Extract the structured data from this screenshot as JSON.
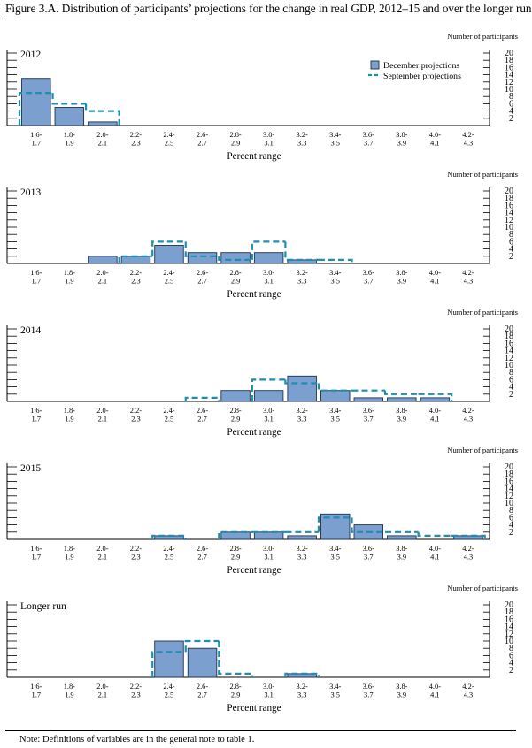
{
  "title": "Figure 3.A. Distribution of participants’ projections for the change in real GDP, 2012–15 and over the longer run",
  "note": "Note:  Definitions of variables are in the general note to table 1.",
  "colors": {
    "bar_fill": "#7b9fcf",
    "bar_stroke": "#1f2f4a",
    "september_line": "#1a8fb0",
    "axis": "#000000"
  },
  "legend": {
    "december": "December projections",
    "september": "September projections"
  },
  "chart_data": [
    {
      "type": "bar",
      "label": "2012",
      "ylabel": "Number of participants",
      "xlabel": "Percent range",
      "ylim": [
        0,
        20
      ],
      "yticks": [
        "2",
        "4",
        "6",
        "8",
        "10",
        "12",
        "14",
        "16",
        "18",
        "20"
      ],
      "categories": [
        "1.6-\n1.7",
        "1.8-\n1.9",
        "2.0-\n2.1",
        "2.2-\n2.3",
        "2.4-\n2.5",
        "2.6-\n2.7",
        "2.8-\n2.9",
        "3.0-\n3.1",
        "3.2-\n3.3",
        "3.4-\n3.5",
        "3.6-\n3.7",
        "3.8-\n3.9",
        "4.0-\n4.1",
        "4.2-\n4.3"
      ],
      "legend_shown": true,
      "series": [
        {
          "name": "December projections",
          "values": [
            13,
            5,
            1,
            0,
            0,
            0,
            0,
            0,
            0,
            0,
            0,
            0,
            0,
            0
          ]
        },
        {
          "name": "September projections",
          "values": [
            9,
            6,
            4,
            0,
            0,
            0,
            0,
            0,
            0,
            0,
            0,
            0,
            0,
            0
          ]
        }
      ]
    },
    {
      "type": "bar",
      "label": "2013",
      "ylabel": "Number of participants",
      "xlabel": "Percent range",
      "ylim": [
        0,
        20
      ],
      "yticks": [
        "2",
        "4",
        "6",
        "8",
        "10",
        "12",
        "14",
        "16",
        "18",
        "20"
      ],
      "categories": [
        "1.6-\n1.7",
        "1.8-\n1.9",
        "2.0-\n2.1",
        "2.2-\n2.3",
        "2.4-\n2.5",
        "2.6-\n2.7",
        "2.8-\n2.9",
        "3.0-\n3.1",
        "3.2-\n3.3",
        "3.4-\n3.5",
        "3.6-\n3.7",
        "3.8-\n3.9",
        "4.0-\n4.1",
        "4.2-\n4.3"
      ],
      "legend_shown": false,
      "series": [
        {
          "name": "December projections",
          "values": [
            0,
            0,
            2,
            2,
            5,
            3,
            3,
            3,
            1,
            0,
            0,
            0,
            0,
            0
          ]
        },
        {
          "name": "September projections",
          "values": [
            0,
            0,
            0,
            2,
            6,
            2,
            1,
            6,
            1,
            1,
            0,
            0,
            0,
            0
          ]
        }
      ]
    },
    {
      "type": "bar",
      "label": "2014",
      "ylabel": "Number of participants",
      "xlabel": "Percent range",
      "ylim": [
        0,
        20
      ],
      "yticks": [
        "2",
        "4",
        "6",
        "8",
        "10",
        "12",
        "14",
        "16",
        "18",
        "20"
      ],
      "categories": [
        "1.6-\n1.7",
        "1.8-\n1.9",
        "2.0-\n2.1",
        "2.2-\n2.3",
        "2.4-\n2.5",
        "2.6-\n2.7",
        "2.8-\n2.9",
        "3.0-\n3.1",
        "3.2-\n3.3",
        "3.4-\n3.5",
        "3.6-\n3.7",
        "3.8-\n3.9",
        "4.0-\n4.1",
        "4.2-\n4.3"
      ],
      "legend_shown": false,
      "series": [
        {
          "name": "December projections",
          "values": [
            0,
            0,
            0,
            0,
            0,
            0,
            3,
            3,
            7,
            3,
            1,
            1,
            1,
            0
          ]
        },
        {
          "name": "September projections",
          "values": [
            0,
            0,
            0,
            0,
            0,
            1,
            0,
            6,
            5,
            3,
            3,
            2,
            2,
            0
          ]
        }
      ]
    },
    {
      "type": "bar",
      "label": "2015",
      "ylabel": "Number of participants",
      "xlabel": "Percent range",
      "ylim": [
        0,
        20
      ],
      "yticks": [
        "2",
        "4",
        "6",
        "8",
        "10",
        "12",
        "14",
        "16",
        "18",
        "20"
      ],
      "categories": [
        "1.6-\n1.7",
        "1.8-\n1.9",
        "2.0-\n2.1",
        "2.2-\n2.3",
        "2.4-\n2.5",
        "2.6-\n2.7",
        "2.8-\n2.9",
        "3.0-\n3.1",
        "3.2-\n3.3",
        "3.4-\n3.5",
        "3.6-\n3.7",
        "3.8-\n3.9",
        "4.0-\n4.1",
        "4.2-\n4.3"
      ],
      "legend_shown": false,
      "series": [
        {
          "name": "December projections",
          "values": [
            0,
            0,
            0,
            0,
            1,
            0,
            2,
            2,
            1,
            7,
            4,
            1,
            0,
            1
          ]
        },
        {
          "name": "September projections",
          "values": [
            0,
            0,
            0,
            0,
            1,
            0,
            2,
            2,
            2,
            6,
            2,
            2,
            1,
            1
          ]
        }
      ]
    },
    {
      "type": "bar",
      "label": "Longer run",
      "ylabel": "Number of participants",
      "xlabel": "Percent range",
      "ylim": [
        0,
        20
      ],
      "yticks": [
        "2",
        "4",
        "6",
        "8",
        "10",
        "12",
        "14",
        "16",
        "18",
        "20"
      ],
      "categories": [
        "1.6-\n1.7",
        "1.8-\n1.9",
        "2.0-\n2.1",
        "2.2-\n2.3",
        "2.4-\n2.5",
        "2.6-\n2.7",
        "2.8-\n2.9",
        "3.0-\n3.1",
        "3.2-\n3.3",
        "3.4-\n3.5",
        "3.6-\n3.7",
        "3.8-\n3.9",
        "4.0-\n4.1",
        "4.2-\n4.3"
      ],
      "legend_shown": false,
      "series": [
        {
          "name": "December projections",
          "values": [
            0,
            0,
            0,
            0,
            10,
            8,
            0,
            0,
            1,
            0,
            0,
            0,
            0,
            0
          ]
        },
        {
          "name": "September projections",
          "values": [
            0,
            0,
            0,
            0,
            7,
            10,
            1,
            0,
            1,
            0,
            0,
            0,
            0,
            0
          ]
        }
      ]
    }
  ]
}
